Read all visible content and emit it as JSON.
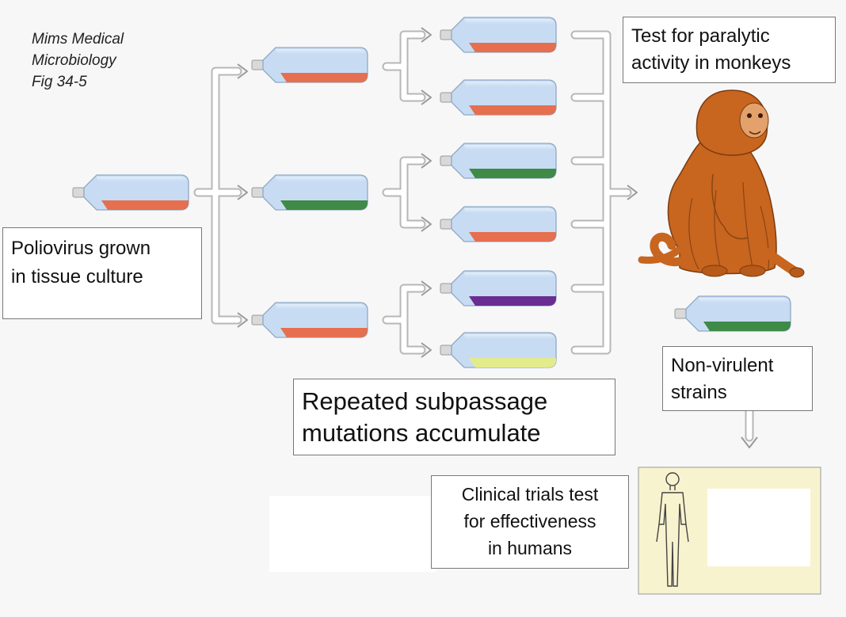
{
  "citation": [
    "Mims Medical",
    "Microbiology",
    "Fig 34-5"
  ],
  "labels": {
    "poliovirus": [
      "Poliovirus grown",
      "in tissue culture"
    ],
    "subpassage": [
      "Repeated subpassage",
      "mutations accumulate"
    ],
    "paralytic": [
      "Test for paralytic",
      "activity in monkeys"
    ],
    "nonvirulent": [
      "Non-virulent",
      "strains"
    ],
    "clinical": [
      "Clinical trials test",
      "for effectiveness",
      "in humans"
    ]
  },
  "colors": {
    "flask_body": "#c7dcf3",
    "flask_outline": "#8fa8c4",
    "medium_orange": "#e66f4f",
    "medium_green": "#3f8a46",
    "medium_purple": "#6a2d91",
    "medium_yellow": "#e3ec8c",
    "monkey": "#c8651f",
    "human_panel": "#f8f3cf"
  },
  "flasks": {
    "start": "orange",
    "passage1": [
      "orange",
      "green",
      "orange"
    ],
    "passage2": [
      "orange",
      "orange",
      "green",
      "orange",
      "purple",
      "yellow"
    ],
    "result": "green"
  },
  "icons": [
    "flask-icon",
    "monkey-icon",
    "human-figure-icon",
    "arrow-icon"
  ]
}
